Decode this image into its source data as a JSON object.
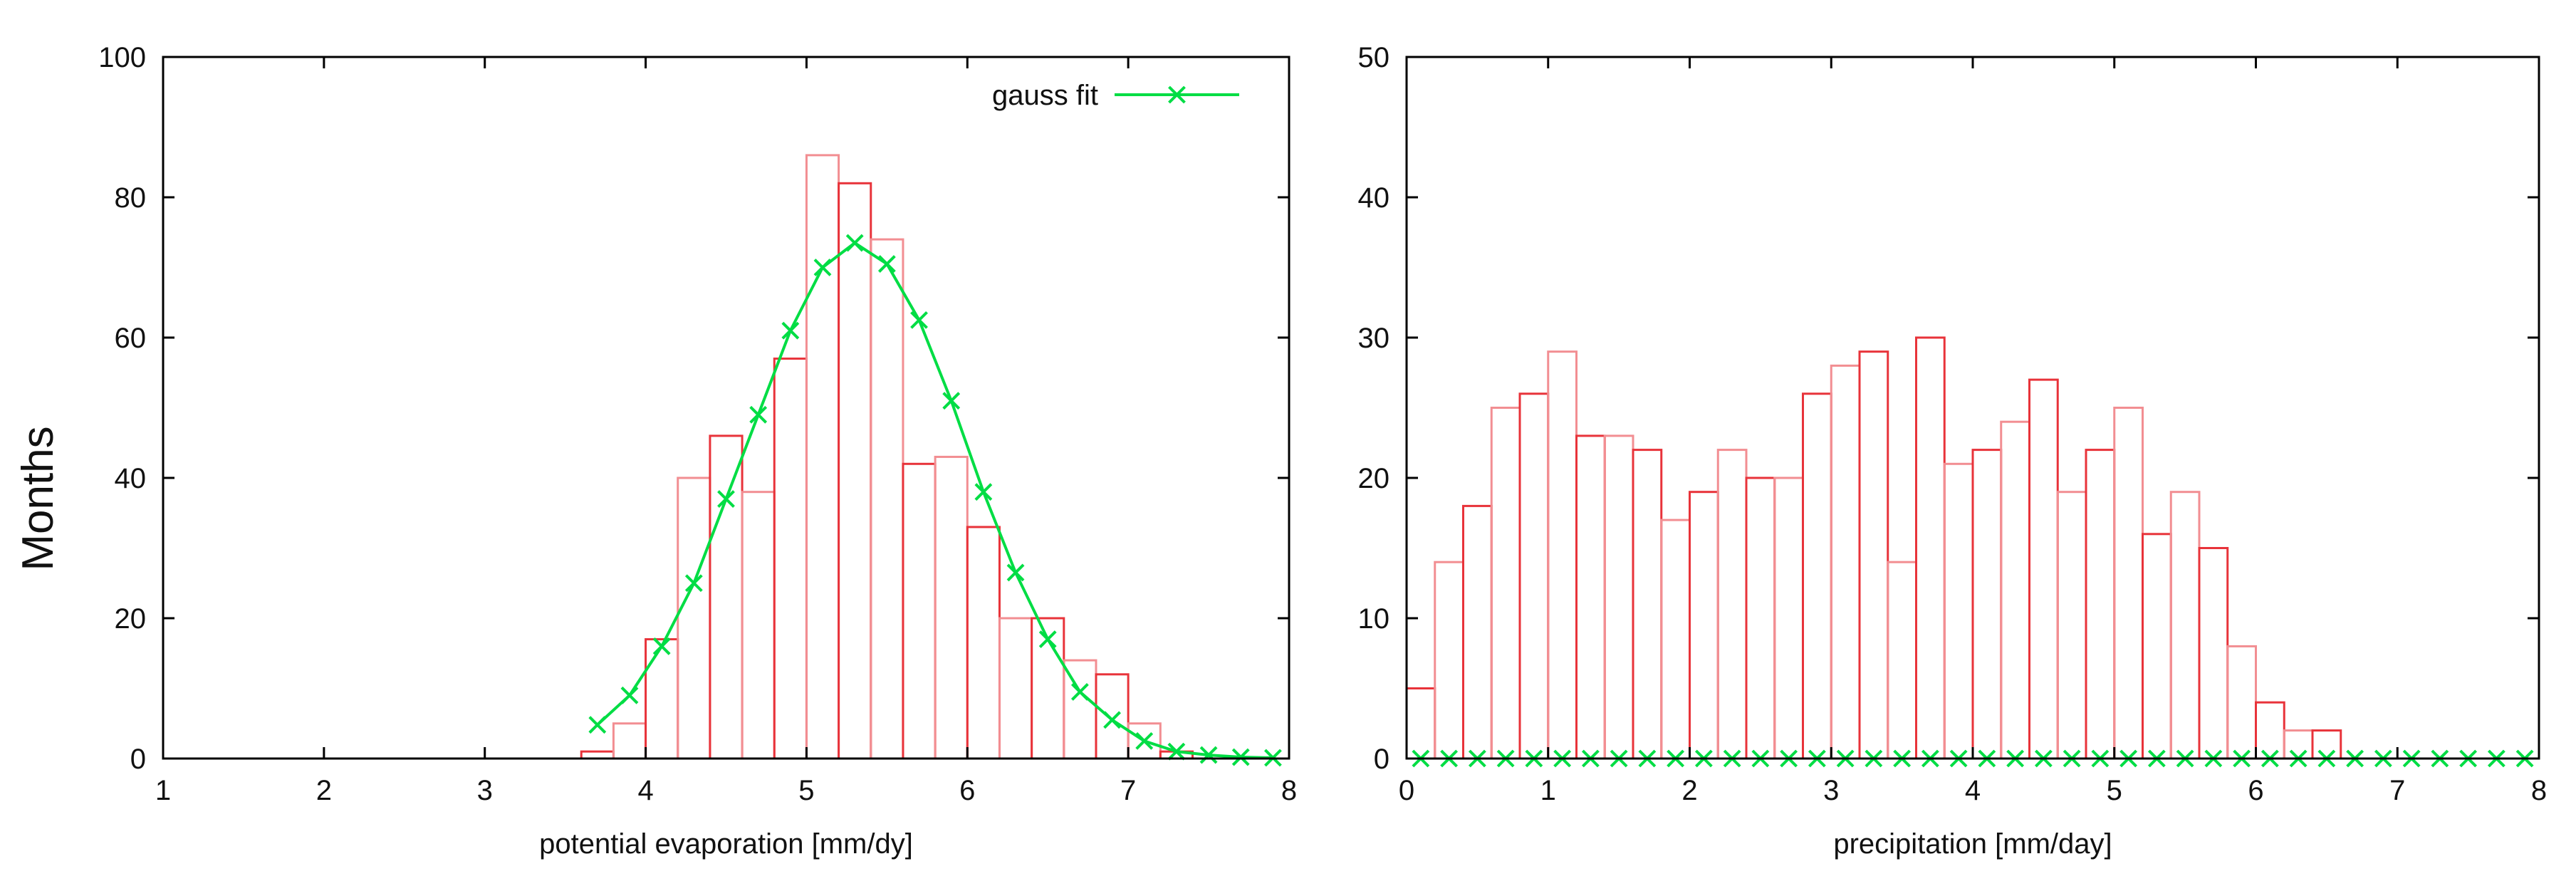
{
  "figure": {
    "ylabel": "Months"
  },
  "chart_data": [
    {
      "type": "bar",
      "title": "",
      "xlabel": "potential evaporation  [mm/dy]",
      "ylabel": "Months",
      "xlim": [
        1,
        8
      ],
      "ylim": [
        0,
        100
      ],
      "xticks": [
        "1",
        "2",
        "3",
        "4",
        "5",
        "6",
        "7",
        "8"
      ],
      "yticks": [
        "0",
        "20",
        "40",
        "60",
        "80",
        "100"
      ],
      "bin_width": 0.2,
      "bars": {
        "x": [
          3.6,
          3.8,
          4.0,
          4.2,
          4.4,
          4.6,
          4.8,
          5.0,
          5.2,
          5.4,
          5.6,
          5.8,
          6.0,
          6.2,
          6.4,
          6.6,
          6.8,
          7.0,
          7.2
        ],
        "values": [
          1,
          5,
          17,
          40,
          46,
          38,
          57,
          86,
          82,
          74,
          42,
          43,
          33,
          20,
          20,
          14,
          12,
          5,
          1
        ]
      },
      "series": [
        {
          "name": "gauss  fit",
          "color": "#00dd44",
          "marker": "x",
          "x": [
            3.7,
            3.9,
            4.1,
            4.3,
            4.5,
            4.7,
            4.9,
            5.1,
            5.3,
            5.5,
            5.7,
            5.9,
            6.1,
            6.3,
            6.5,
            6.7,
            6.9,
            7.1,
            7.3,
            7.5,
            7.7,
            7.9
          ],
          "values": [
            4.8,
            9,
            16,
            25,
            37,
            49,
            61,
            70,
            73.5,
            70.5,
            62.5,
            51,
            38,
            26.5,
            17,
            9.5,
            5.5,
            2.5,
            1,
            0.5,
            0.2,
            0.1
          ]
        }
      ],
      "legend": "top-right",
      "bar_colors": [
        "#e8333a",
        "#f28e92"
      ]
    },
    {
      "type": "bar",
      "title": "",
      "xlabel": "precipitation  [mm/day]",
      "ylabel": "",
      "xlim": [
        0,
        8
      ],
      "ylim": [
        0,
        50
      ],
      "xticks": [
        "0",
        "1",
        "2",
        "3",
        "4",
        "5",
        "6",
        "7",
        "8"
      ],
      "yticks": [
        "0",
        "10",
        "20",
        "30",
        "40",
        "50"
      ],
      "bin_width": 0.2,
      "bars": {
        "x": [
          0.0,
          0.2,
          0.4,
          0.6,
          0.8,
          1.0,
          1.2,
          1.4,
          1.6,
          1.8,
          2.0,
          2.2,
          2.4,
          2.6,
          2.8,
          3.0,
          3.2,
          3.4,
          3.6,
          3.8,
          4.0,
          4.2,
          4.4,
          4.6,
          4.8,
          5.0,
          5.2,
          5.4,
          5.6,
          5.8,
          6.0,
          6.2,
          6.4
        ],
        "values": [
          5,
          14,
          18,
          25,
          26,
          29,
          23,
          23,
          22,
          17,
          19,
          22,
          20,
          20,
          26,
          28,
          29,
          14,
          30,
          21,
          22,
          24,
          27,
          19,
          22,
          25,
          16,
          19,
          15,
          8,
          4,
          2,
          2
        ]
      },
      "series": [
        {
          "name": "",
          "color": "#00dd44",
          "marker": "x",
          "x": [
            0.1,
            0.3,
            0.5,
            0.7,
            0.9,
            1.1,
            1.3,
            1.5,
            1.7,
            1.9,
            2.1,
            2.3,
            2.5,
            2.7,
            2.9,
            3.1,
            3.3,
            3.5,
            3.7,
            3.9,
            4.1,
            4.3,
            4.5,
            4.7,
            4.9,
            5.1,
            5.3,
            5.5,
            5.7,
            5.9,
            6.1,
            6.3,
            6.5,
            6.7,
            6.9,
            7.1,
            7.3,
            7.5,
            7.7,
            7.9
          ],
          "values": [
            0,
            0,
            0,
            0,
            0,
            0,
            0,
            0,
            0,
            0,
            0,
            0,
            0,
            0,
            0,
            0,
            0,
            0,
            0,
            0,
            0,
            0,
            0,
            0,
            0,
            0,
            0,
            0,
            0,
            0,
            0,
            0,
            0,
            0,
            0,
            0,
            0,
            0,
            0,
            0
          ]
        }
      ],
      "legend": "none",
      "bar_colors": [
        "#e8333a",
        "#f28e92"
      ]
    }
  ]
}
